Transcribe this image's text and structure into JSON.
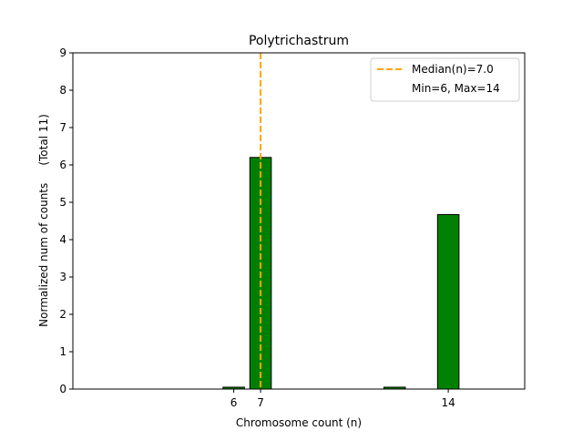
{
  "chart_data": {
    "type": "bar",
    "title": "Polytrichastrum",
    "xlabel": "Chromosome count (n)",
    "ylabel": "Normalized num of counts     (Total 11)",
    "x": [
      6,
      7,
      12,
      14
    ],
    "values": [
      0.05,
      6.2,
      0.05,
      4.67
    ],
    "bar_width": 0.8,
    "xlim": [
      0.0,
      16.85
    ],
    "ylim": [
      0,
      9
    ],
    "xticks": [
      6,
      7,
      14
    ],
    "yticks": [
      0,
      1,
      2,
      3,
      4,
      5,
      6,
      7,
      8,
      9
    ],
    "bar_color": "#008000",
    "median": 7.0,
    "median_color": "#FFA500",
    "legend": {
      "placement": "top-right",
      "entries": [
        "Median(n)=7.0",
        "Min=6, Max=14"
      ]
    },
    "grid": false
  }
}
